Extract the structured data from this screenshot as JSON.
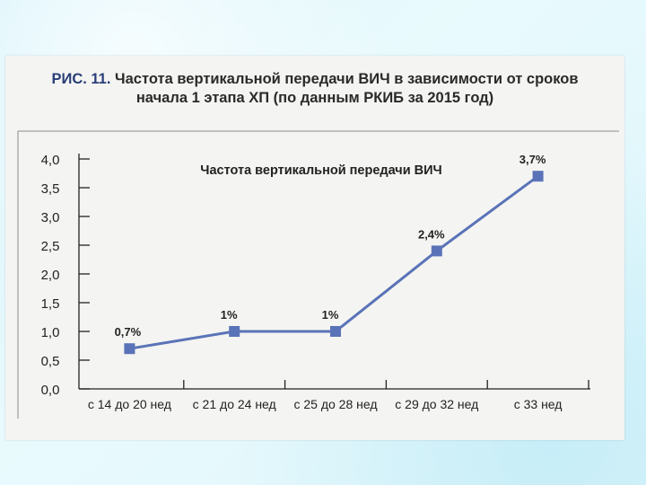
{
  "figure": {
    "label": "РИС. 11.",
    "title_line1": "Частота вертикальной передачи ВИЧ в зависимости от сроков",
    "title_line2": "начала 1 этапа ХП (по данным РКИБ за 2015 год)"
  },
  "chart_data": {
    "type": "line",
    "title": "Частота вертикальной передачи ВИЧ",
    "xlabel": "",
    "ylabel": "",
    "categories": [
      "с 14 до 20 нед",
      "с 21 до 24 нед",
      "с 25 до 28 нед",
      "с 29 до 32 нед",
      "с 33 нед"
    ],
    "series": [
      {
        "values": [
          0.7,
          1.0,
          1.0,
          2.4,
          3.7
        ],
        "labels": [
          "0,7%",
          "1%",
          "1%",
          "2,4%",
          "3,7%"
        ]
      }
    ],
    "ylim": [
      0,
      4.0
    ],
    "yticks": [
      0.0,
      0.5,
      1.0,
      1.5,
      2.0,
      2.5,
      3.0,
      3.5,
      4.0
    ],
    "ytick_labels": [
      "0,0",
      "0,5",
      "1,0",
      "1,5",
      "2,0",
      "2,5",
      "3,0",
      "3,5",
      "4,0"
    ],
    "grid": false,
    "line_color": "#5a73b8",
    "marker_color": "#5a73b8",
    "marker_shape": "square"
  }
}
